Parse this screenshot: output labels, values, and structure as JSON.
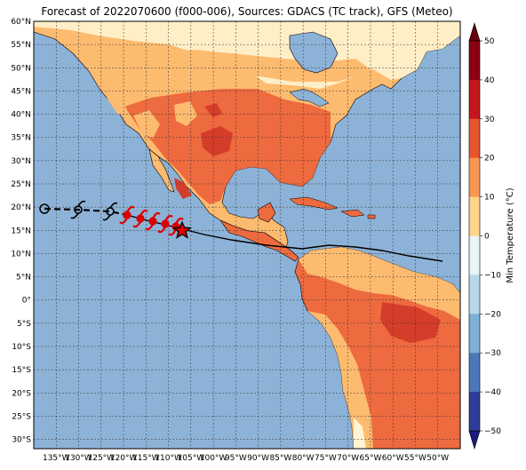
{
  "title": "Forecast of 2022070600 (f000-006), Sources: GDACS (TC track), GFS (Meteo)",
  "map": {
    "lon_min": -140,
    "lon_max": -45,
    "lat_min": -32,
    "lat_max": 60,
    "lat_labels": [
      "60°N",
      "55°N",
      "50°N",
      "45°N",
      "40°N",
      "35°N",
      "30°N",
      "25°N",
      "20°N",
      "15°N",
      "10°N",
      "5°N",
      "0°",
      "5°S",
      "10°S",
      "15°S",
      "20°S",
      "25°S",
      "30°S"
    ],
    "lon_labels": [
      "135°W",
      "130°W",
      "125°W",
      "120°W",
      "115°W",
      "110°W",
      "105°W",
      "100°W",
      "95°W",
      "90°W",
      "85°W",
      "80°W",
      "75°W",
      "70°W",
      "65°W",
      "60°W",
      "55°W",
      "50°W"
    ],
    "colors": {
      "ocean": "#8db2d7",
      "band_0_10": "#fff4cf",
      "band_10_20": "#fdbb6f",
      "band_20_30": "#ee6a3f",
      "band_30_40": "#d53d2b",
      "grid": "#333333",
      "track_forecast": "#000000",
      "storm_current": "#dd0000"
    }
  },
  "storm": {
    "current_marker": "star-icon",
    "past_positions_icon": "hurricane-icon",
    "forecast_track_icon": "hurricane-symbol-icon"
  },
  "colorbar": {
    "label": "Min Temperature (°C)",
    "ticks": [
      "50",
      "40",
      "30",
      "20",
      "10",
      "0",
      "−10",
      "−20",
      "−30",
      "−40",
      "−50"
    ],
    "colors": [
      "#67000d",
      "#a50f15",
      "#d73027",
      "#f46d43",
      "#fdae61",
      "#fee090",
      "#e0f3f8",
      "#abd9e9",
      "#74add1",
      "#4575b4",
      "#313695",
      "#1a1a80"
    ]
  }
}
